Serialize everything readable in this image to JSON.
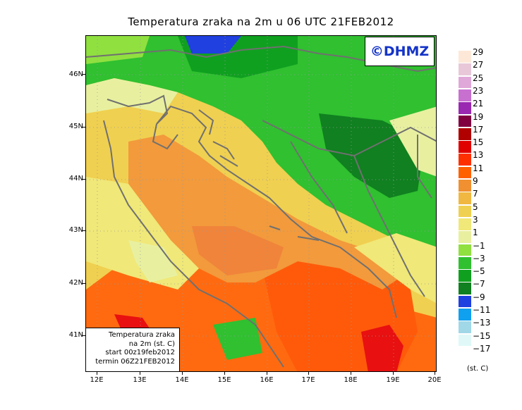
{
  "title": "Temperatura zraka na 2m u 06 UTC 21FEB2012",
  "logo": "©DHMZ",
  "info": {
    "line1": "Temperatura zraka",
    "line2": "na 2m (st. C)",
    "line3": "start 00z19feb2012",
    "line4": "termin 06Z21FEB2012"
  },
  "lat_labels": [
    "46N",
    "45N",
    "44N",
    "43N",
    "42N",
    "41N"
  ],
  "lon_labels": [
    "12E",
    "13E",
    "14E",
    "15E",
    "16E",
    "17E",
    "18E",
    "19E",
    "20E"
  ],
  "legend": {
    "unit": "(st. C)",
    "labels": [
      "29",
      "27",
      "25",
      "23",
      "21",
      "19",
      "17",
      "15",
      "13",
      "11",
      "9",
      "7",
      "5",
      "3",
      "1",
      "−1",
      "−3",
      "−5",
      "−7",
      "−9",
      "−11",
      "−13",
      "−15",
      "−17"
    ],
    "colors": [
      "#fde8d8",
      "#e8c8d8",
      "#e0a8d8",
      "#c870d0",
      "#9a28b0",
      "#800040",
      "#b00000",
      "#e00000",
      "#ff3000",
      "#ff6000",
      "#f09030",
      "#f0b840",
      "#f0d050",
      "#f0e878",
      "#e8f0a0",
      "#90e040",
      "#30c030",
      "#10a020",
      "#108020",
      "#2040e0",
      "#10a0f0",
      "#a0d8e8",
      "#e0f8f8",
      "#ffffff"
    ]
  },
  "colors": {
    "sea_warm": "#ff6a10",
    "sea_mid": "#f29a3c",
    "coast": "#f0b840",
    "land_cold": "#30c030",
    "mountain": "#108020",
    "outline": "#707070",
    "logo": "#1434c8"
  }
}
